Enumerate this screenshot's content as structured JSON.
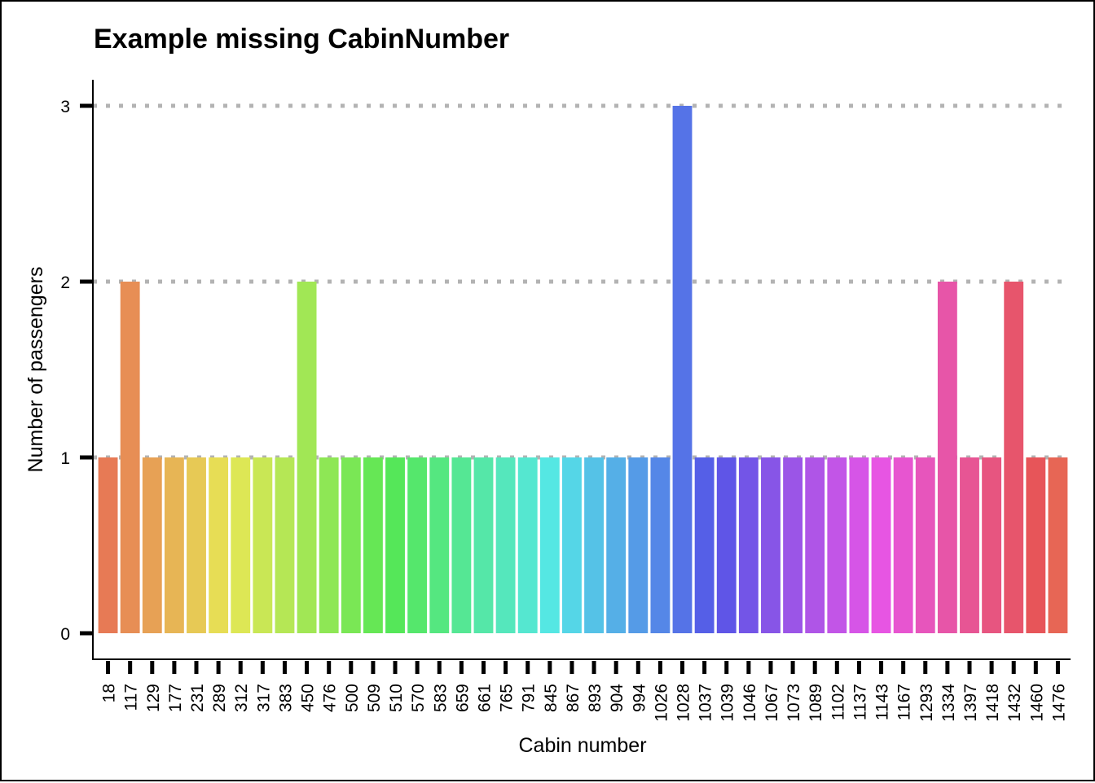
{
  "chart_data": {
    "type": "bar",
    "title": "Example missing CabinNumber",
    "xlabel": "Cabin number",
    "ylabel": "Number of passengers",
    "ylim": [
      0,
      3
    ],
    "yticks": [
      0,
      1,
      2,
      3
    ],
    "grid": "horizontal dotted",
    "legend": "none",
    "categories": [
      "18",
      "117",
      "129",
      "177",
      "231",
      "289",
      "312",
      "317",
      "383",
      "450",
      "476",
      "500",
      "509",
      "510",
      "570",
      "583",
      "659",
      "661",
      "765",
      "791",
      "845",
      "867",
      "893",
      "904",
      "994",
      "1026",
      "1028",
      "1037",
      "1039",
      "1046",
      "1067",
      "1073",
      "1089",
      "1102",
      "1137",
      "1143",
      "1167",
      "1293",
      "1334",
      "1397",
      "1418",
      "1432",
      "1460",
      "1476"
    ],
    "values": [
      1,
      2,
      1,
      1,
      1,
      1,
      1,
      1,
      1,
      2,
      1,
      1,
      1,
      1,
      1,
      1,
      1,
      1,
      1,
      1,
      1,
      1,
      1,
      1,
      1,
      1,
      3,
      1,
      1,
      1,
      1,
      1,
      1,
      1,
      1,
      1,
      1,
      1,
      2,
      1,
      1,
      2,
      1,
      1
    ]
  }
}
